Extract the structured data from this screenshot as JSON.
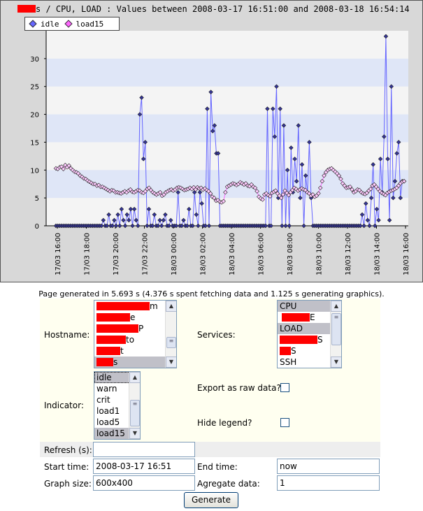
{
  "graph": {
    "title": "s / CPU, LOAD : Values between 2008-03-17 16:51:00 and 2008-03-18 16:54:14",
    "legend": [
      {
        "name": "idle",
        "color": "#6666ff"
      },
      {
        "name": "load15",
        "color": "#ff66ff"
      }
    ]
  },
  "chart_data": {
    "type": "line",
    "ylim": [
      0,
      35
    ],
    "yticks": [
      "0",
      "5",
      "10",
      "15",
      "20",
      "25",
      "30"
    ],
    "xticks": [
      "17/03 16:00",
      "17/03 18:00",
      "17/03 20:00",
      "17/03 22:00",
      "18/03 00:00",
      "18/03 02:00",
      "18/03 04:00",
      "18/03 06:00",
      "18/03 08:00",
      "18/03 10:00",
      "18/03 12:00",
      "18/03 14:00",
      "18/03 16:00"
    ],
    "series": [
      {
        "name": "idle",
        "color": "#6666ff",
        "values": [
          0,
          0,
          0,
          0,
          0,
          0,
          0,
          0,
          0,
          0,
          0,
          0,
          0,
          0,
          0,
          0,
          0,
          0,
          0,
          0,
          0,
          0,
          0,
          0,
          0,
          0,
          1,
          0,
          0,
          2,
          0,
          0,
          1,
          0,
          2,
          0,
          3,
          1,
          0,
          2,
          1,
          3,
          0,
          3,
          1,
          0,
          20,
          23,
          12,
          15,
          0,
          3,
          0,
          0,
          2,
          0,
          0,
          1,
          0,
          1,
          2,
          0,
          0,
          1,
          0,
          0,
          0,
          6,
          0,
          0,
          1,
          0,
          0,
          3,
          0,
          0,
          6,
          2,
          0,
          6,
          4,
          0,
          0,
          21,
          0,
          24,
          17,
          18,
          13,
          13,
          0,
          0,
          0,
          0,
          0,
          0,
          0,
          0,
          0,
          0,
          0,
          0,
          0,
          0,
          0,
          0,
          0,
          0,
          0,
          0,
          0,
          0,
          0,
          0,
          0,
          0,
          21,
          0,
          0,
          21,
          16,
          25,
          5,
          21,
          0,
          18,
          0,
          10,
          0,
          14,
          6,
          12,
          8,
          18,
          5,
          11,
          0,
          9,
          6,
          15,
          5,
          0,
          0,
          0,
          0,
          0,
          0,
          0,
          0,
          0,
          0,
          0,
          0,
          0,
          0,
          0,
          0,
          0,
          0,
          0,
          0,
          0,
          0,
          0,
          0,
          0,
          0,
          0,
          2,
          0,
          4,
          1,
          0,
          5,
          11,
          0,
          3,
          1,
          12,
          6,
          16,
          34,
          12,
          1,
          25,
          5,
          8,
          13,
          15,
          5,
          8,
          8
        ]
      },
      {
        "name": "load15",
        "color": "#ff66ff",
        "values": [
          10.3,
          10.2,
          10.5,
          10.6,
          10.2,
          10.9,
          10.5,
          10.8,
          10.3,
          10.0,
          9.7,
          9.6,
          9.4,
          9.0,
          8.8,
          8.5,
          8.4,
          8.1,
          7.9,
          7.7,
          7.5,
          7.5,
          7.2,
          7.3,
          7.0,
          7.0,
          6.8,
          6.6,
          6.4,
          6.2,
          6.4,
          6.3,
          6.0,
          6.0,
          5.9,
          5.8,
          6.0,
          6.2,
          6.0,
          6.3,
          6.5,
          6.1,
          6.0,
          6.2,
          6.4,
          6.3,
          6.0,
          5.9,
          6.2,
          6.6,
          6.8,
          6.4,
          6.0,
          5.8,
          5.6,
          5.8,
          6.0,
          5.4,
          5.6,
          6.0,
          6.2,
          6.4,
          6.5,
          6.3,
          6.5,
          6.8,
          6.9,
          6.8,
          6.6,
          6.4,
          6.5,
          6.6,
          6.8,
          6.6,
          6.9,
          6.5,
          6.9,
          6.7,
          6.8,
          6.5,
          6.7,
          6.4,
          6.2,
          5.8,
          5.2,
          5.0,
          4.5,
          4.6,
          4.3,
          4.2,
          4.4,
          6.0,
          7.0,
          7.2,
          7.4,
          7.6,
          7.5,
          7.3,
          7.5,
          7.8,
          7.6,
          7.4,
          7.6,
          7.2,
          7.1,
          7.4,
          7.0,
          6.8,
          6.2,
          5.2,
          4.9,
          4.7,
          5.6,
          5.8,
          5.5,
          5.3,
          5.9,
          6.1,
          6.3,
          5.8,
          5.4,
          5.0,
          5.6,
          6.3,
          5.9,
          5.5,
          6.0,
          6.4,
          6.8,
          6.6,
          6.3,
          6.5,
          6.7,
          6.5,
          6.4,
          6.0,
          5.8,
          5.4,
          5.6,
          5.2,
          5.4,
          5.8,
          6.8,
          8.0,
          9.0,
          9.6,
          10.0,
          10.2,
          10.3,
          10.0,
          9.7,
          9.4,
          9.0,
          8.4,
          7.6,
          7.2,
          6.8,
          6.9,
          7.0,
          6.5,
          6.0,
          6.2,
          6.5,
          6.4,
          6.0,
          5.8,
          5.7,
          5.9,
          6.3,
          6.6,
          7.2,
          7.4,
          7.0,
          6.6,
          6.2,
          5.9,
          5.7,
          5.5,
          5.9,
          6.1,
          6.3,
          6.4,
          6.6,
          6.8,
          7.2,
          7.6,
          7.9,
          8.0
        ]
      }
    ]
  },
  "status": "Page generated in 5.693 s (4.376 s spent fetching data and 1.125 s generating graphics).",
  "form": {
    "hostname_label": "Hostname:",
    "hostname_options": [
      "m",
      "e",
      "P",
      "to",
      "t",
      "s"
    ],
    "services_label": "Services:",
    "services_options": [
      "CPU",
      "E",
      "LOAD",
      "S",
      "S",
      "SSH"
    ],
    "indicator_label": "Indicator:",
    "indicator_options": [
      "idle",
      "warn",
      "crit",
      "load1",
      "load5",
      "load15"
    ],
    "export_label": "Export as raw data?",
    "hide_legend_label": "Hide legend?",
    "refresh_label": "Refresh (s):",
    "refresh_value": "",
    "start_label": "Start time:",
    "start_value": "2008-03-17 16:51",
    "end_label": "End time:",
    "end_value": "now",
    "size_label": "Graph size:",
    "size_value": "600x400",
    "aggregate_label": "Agregate data:",
    "aggregate_value": "1",
    "generate_label": "Generate"
  }
}
